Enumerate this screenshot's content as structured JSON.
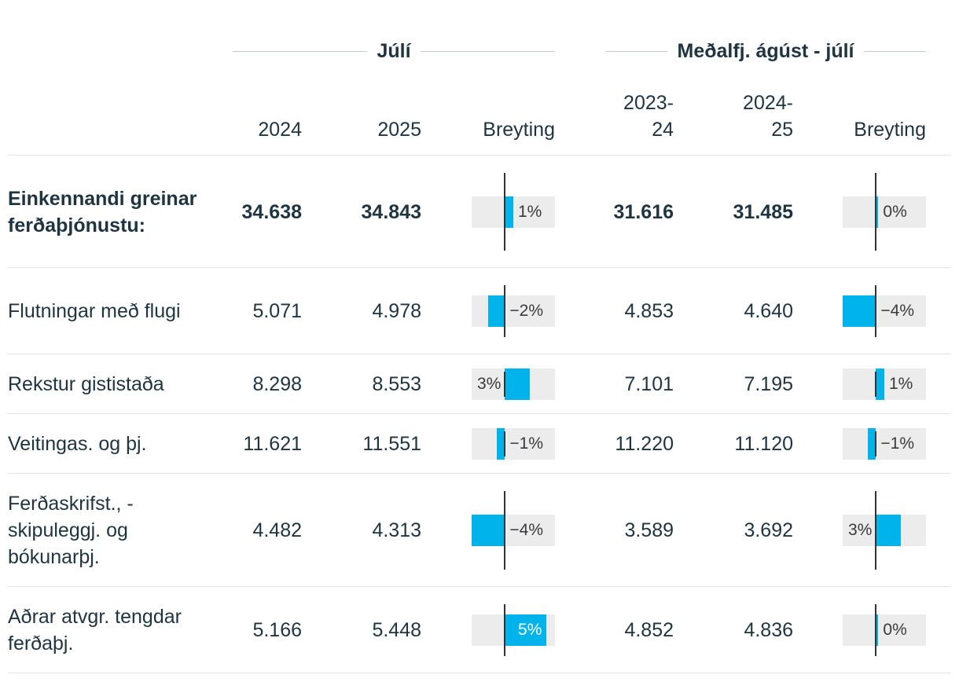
{
  "chart_data": {
    "type": "table",
    "groups": [
      {
        "title": "Júlí",
        "columns": [
          "2024",
          "2025"
        ],
        "change_label": "Breyting"
      },
      {
        "title": "Meðalfj. ágúst - júlí",
        "columns": [
          "2023-\n24",
          "2024-\n25"
        ],
        "change_label": "Breyting"
      }
    ],
    "bar_scale_max_pct": 5,
    "rows": [
      {
        "label": "Einkennandi greinar ferðaþjónustu:",
        "bold": true,
        "values": [
          "34.638",
          "34.843",
          "31.616",
          "31.485"
        ],
        "change1": 1,
        "change1_label": "1%",
        "change2": 0,
        "change2_label": "0%"
      },
      {
        "label": "Flutningar með flugi",
        "bold": false,
        "values": [
          "5.071",
          "4.978",
          "4.853",
          "4.640"
        ],
        "change1": -2,
        "change1_label": "−2%",
        "change2": -4,
        "change2_label": "−4%"
      },
      {
        "label": "Rekstur gististaða",
        "bold": false,
        "values": [
          "8.298",
          "8.553",
          "7.101",
          "7.195"
        ],
        "change1": 3,
        "change1_label": "3%",
        "change2": 1,
        "change2_label": "1%"
      },
      {
        "label": "Veitingas. og þj.",
        "bold": false,
        "values": [
          "11.621",
          "11.551",
          "11.220",
          "11.120"
        ],
        "change1": -1,
        "change1_label": "−1%",
        "change2": -1,
        "change2_label": "−1%"
      },
      {
        "label": "Ferðaskrifst., -skipuleggj. og bókunarþj.",
        "bold": false,
        "values": [
          "4.482",
          "4.313",
          "3.589",
          "3.692"
        ],
        "change1": -4,
        "change1_label": "−4%",
        "change2": 3,
        "change2_label": "3%"
      },
      {
        "label": "Aðrar atvgr. tengdar ferðaþj.",
        "bold": false,
        "values": [
          "5.166",
          "5.448",
          "4.852",
          "4.836"
        ],
        "change1": 5,
        "change1_label": "5%",
        "change2": 0,
        "change2_label": "0%"
      }
    ],
    "colors": {
      "bar": "#00b3ea",
      "bar_bg": "#ececec",
      "text": "#1f3441"
    }
  }
}
